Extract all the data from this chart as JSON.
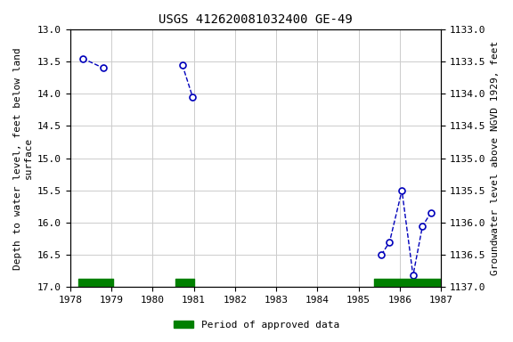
{
  "title": "USGS 412620081032400 GE-49",
  "ylabel_left": "Depth to water level, feet below land\nsurface",
  "ylabel_right": "Groundwater level above NGVD 1929, feet",
  "xlim": [
    1978,
    1987
  ],
  "ylim_left": [
    13.0,
    17.0
  ],
  "ylim_right": [
    1137.0,
    1133.0
  ],
  "yticks_left": [
    13.0,
    13.5,
    14.0,
    14.5,
    15.0,
    15.5,
    16.0,
    16.5,
    17.0
  ],
  "yticks_right": [
    1137.0,
    1136.5,
    1136.0,
    1135.5,
    1135.0,
    1134.5,
    1134.0,
    1133.5,
    1133.0
  ],
  "xticks": [
    1978,
    1979,
    1980,
    1981,
    1982,
    1983,
    1984,
    1985,
    1986,
    1987
  ],
  "clusters": [
    {
      "x": [
        1978.3,
        1978.8
      ],
      "y": [
        13.45,
        13.6
      ]
    },
    {
      "x": [
        1980.72,
        1980.97
      ],
      "y": [
        13.55,
        14.05
      ]
    },
    {
      "x": [
        1985.55,
        1985.75,
        1986.05,
        1986.32,
        1986.55,
        1986.75
      ],
      "y": [
        16.5,
        16.3,
        15.5,
        16.82,
        16.05,
        15.85
      ]
    }
  ],
  "line_color": "#0000bb",
  "marker_color": "#0000bb",
  "grid_color": "#cccccc",
  "bg_color": "#ffffff",
  "approved_bars": [
    {
      "x0": 1978.2,
      "x1": 1979.05
    },
    {
      "x0": 1980.55,
      "x1": 1981.0
    },
    {
      "x0": 1985.38,
      "x1": 1987.0
    }
  ],
  "approved_bar_y_bottom": 17.0,
  "approved_bar_height": 0.13,
  "approved_color": "#008000",
  "legend_label": "Period of approved data",
  "font_family": "monospace",
  "title_fontsize": 10,
  "label_fontsize": 8,
  "tick_fontsize": 8
}
